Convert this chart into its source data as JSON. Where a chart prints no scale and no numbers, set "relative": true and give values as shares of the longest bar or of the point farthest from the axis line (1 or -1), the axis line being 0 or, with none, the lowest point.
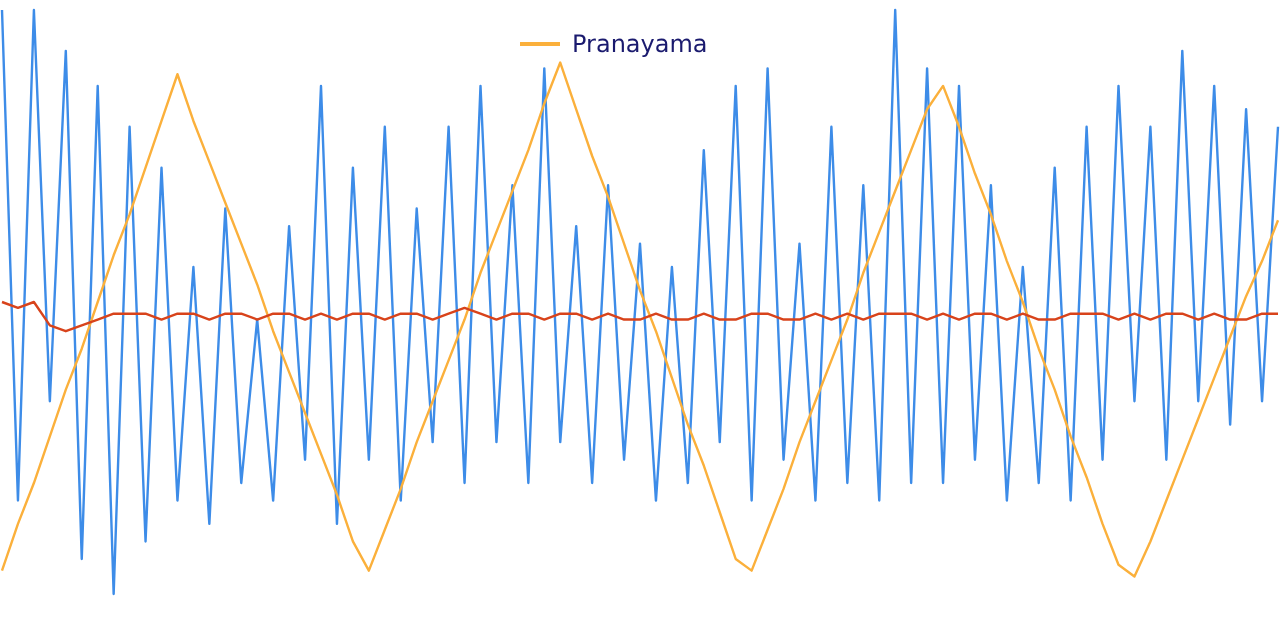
{
  "chart_data": {
    "type": "line",
    "relative": true,
    "legend": "top",
    "marker": "none",
    "categories": [
      null,
      null,
      null,
      null,
      null,
      null,
      null,
      null,
      null,
      null,
      null,
      null,
      null,
      null,
      null,
      null,
      null,
      null,
      null,
      null,
      null,
      null,
      null,
      null,
      null,
      null,
      null,
      null,
      null,
      null,
      null,
      null,
      null,
      null,
      null,
      null,
      null,
      null,
      null,
      null,
      null,
      null,
      null,
      null,
      null,
      null,
      null,
      null,
      null,
      null,
      null,
      null,
      null,
      null,
      null,
      null,
      null,
      null,
      null,
      null,
      null,
      null,
      null,
      null,
      null,
      null,
      null,
      null,
      null,
      null,
      null,
      null,
      null,
      null,
      null,
      null,
      null,
      null,
      null,
      null,
      null
    ],
    "series": [
      {
        "color": "#3d8ce8",
        "values": [
          1.0,
          0.16,
          1.0,
          0.33,
          0.93,
          0.06,
          0.87,
          0,
          0.8,
          0.09,
          0.73,
          0.16,
          0.56,
          0.12,
          0.66,
          0.19,
          0.47,
          0.16,
          0.63,
          0.23,
          0.87,
          0.12,
          0.73,
          0.23,
          0.8,
          0.16,
          0.66,
          0.26,
          0.8,
          0.19,
          0.87,
          0.26,
          0.7,
          0.19,
          0.9,
          0.26,
          0.63,
          0.19,
          0.7,
          0.23,
          0.6,
          0.16,
          0.56,
          0.19,
          0.76,
          0.26,
          0.87,
          0.16,
          0.9,
          0.23,
          0.6,
          0.16,
          0.8,
          0.19,
          0.7,
          0.16,
          1.0,
          0.19,
          0.9,
          0.19,
          0.87,
          0.23,
          0.7,
          0.16,
          0.56,
          0.19,
          0.73,
          0.16,
          0.8,
          0.23,
          0.87,
          0.33,
          0.8,
          0.23,
          0.93,
          0.33,
          0.87,
          0.29,
          0.83,
          0.33,
          0.8
        ]
      },
      {
        "name": "Pranayama",
        "color": "#fbb03b",
        "values": [
          0.04,
          0.12,
          0.19,
          0.27,
          0.35,
          0.42,
          0.5,
          0.58,
          0.65,
          0.73,
          0.81,
          0.89,
          0.81,
          0.74,
          0.67,
          0.6,
          0.53,
          0.45,
          0.38,
          0.31,
          0.24,
          0.17,
          0.09,
          0.04,
          0.11,
          0.18,
          0.26,
          0.33,
          0.4,
          0.47,
          0.55,
          0.62,
          0.69,
          0.76,
          0.84,
          0.91,
          0.83,
          0.75,
          0.68,
          0.6,
          0.52,
          0.45,
          0.37,
          0.29,
          0.22,
          0.14,
          0.06,
          0.04,
          0.11,
          0.18,
          0.26,
          0.33,
          0.4,
          0.47,
          0.55,
          0.62,
          0.69,
          0.76,
          0.83,
          0.87,
          0.8,
          0.72,
          0.65,
          0.57,
          0.5,
          0.42,
          0.35,
          0.27,
          0.2,
          0.12,
          0.05,
          0.03,
          0.09,
          0.16,
          0.23,
          0.3,
          0.37,
          0.44,
          0.51,
          0.57,
          0.64
        ]
      },
      {
        "color": "#d8431b",
        "values": [
          0.5,
          0.49,
          0.5,
          0.46,
          0.45,
          0.46,
          0.47,
          0.48,
          0.48,
          0.48,
          0.47,
          0.48,
          0.48,
          0.47,
          0.48,
          0.48,
          0.47,
          0.48,
          0.48,
          0.47,
          0.48,
          0.47,
          0.48,
          0.48,
          0.47,
          0.48,
          0.48,
          0.47,
          0.48,
          0.49,
          0.48,
          0.47,
          0.48,
          0.48,
          0.47,
          0.48,
          0.48,
          0.47,
          0.48,
          0.47,
          0.47,
          0.48,
          0.47,
          0.47,
          0.48,
          0.47,
          0.47,
          0.48,
          0.48,
          0.47,
          0.47,
          0.48,
          0.47,
          0.48,
          0.47,
          0.48,
          0.48,
          0.48,
          0.47,
          0.48,
          0.47,
          0.48,
          0.48,
          0.47,
          0.48,
          0.47,
          0.47,
          0.48,
          0.48,
          0.48,
          0.47,
          0.48,
          0.47,
          0.48,
          0.48,
          0.47,
          0.48,
          0.47,
          0.47,
          0.48,
          0.48
        ]
      }
    ]
  }
}
